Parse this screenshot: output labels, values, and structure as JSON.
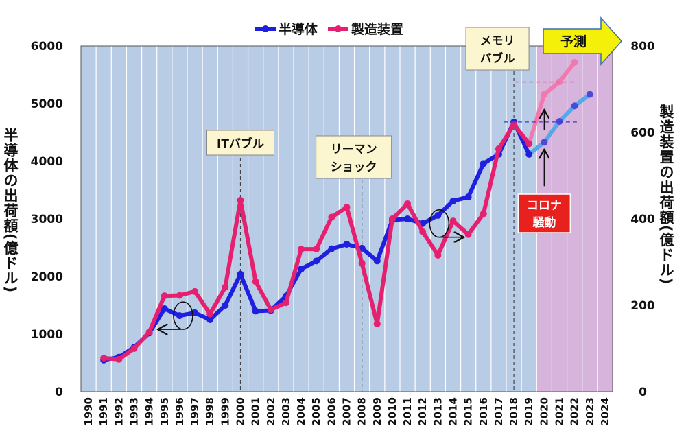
{
  "chart_data": {
    "type": "line",
    "title": "",
    "x": [
      "1990",
      "1991",
      "1992",
      "1993",
      "1994",
      "1995",
      "1996",
      "1997",
      "1998",
      "1999",
      "2000",
      "2001",
      "2002",
      "2003",
      "2004",
      "2005",
      "2006",
      "2007",
      "2008",
      "2009",
      "2010",
      "2011",
      "2012",
      "2013",
      "2014",
      "2015",
      "2016",
      "2017",
      "2018",
      "2019",
      "2020",
      "2021",
      "2022",
      "2023",
      "2024"
    ],
    "xlabel": "",
    "ylabel": "半導体の出荷額(億ドル)",
    "ylabel_right": "製造装置の出荷額(億ドル)",
    "ylim": [
      0,
      6000
    ],
    "ylim_right": [
      0,
      800
    ],
    "yticks": [
      "0",
      "1000",
      "2000",
      "3000",
      "4000",
      "5000",
      "6000"
    ],
    "yticks_right": [
      "0",
      "200",
      "400",
      "600",
      "800"
    ],
    "grid": true,
    "legend_position": "top-center",
    "series": [
      {
        "name": "半導体",
        "axis": "left",
        "color": "#1f1fe0",
        "forecast_color": "#56a8e8",
        "x": [
          1991,
          1992,
          1993,
          1994,
          1995,
          1996,
          1997,
          1998,
          1999,
          2000,
          2001,
          2002,
          2003,
          2004,
          2005,
          2006,
          2007,
          2008,
          2009,
          2010,
          2011,
          2012,
          2013,
          2014,
          2015,
          2016,
          2017,
          2018,
          2019
        ],
        "values": [
          550,
          600,
          770,
          1020,
          1440,
          1320,
          1370,
          1250,
          1500,
          2040,
          1400,
          1410,
          1660,
          2130,
          2270,
          2480,
          2560,
          2490,
          2270,
          2980,
          3000,
          2920,
          3060,
          3310,
          3380,
          3960,
          4120,
          4680,
          4120
        ],
        "forecast_x": [
          2019,
          2020,
          2021,
          2022,
          2023
        ],
        "forecast_values": [
          4120,
          4330,
          4690,
          4960,
          5160
        ]
      },
      {
        "name": "製造装置",
        "axis": "right",
        "color": "#e5206e",
        "forecast_color": "#f07ab0",
        "x": [
          1991,
          1992,
          1993,
          1994,
          1995,
          1996,
          1997,
          1998,
          1999,
          2000,
          2001,
          2002,
          2003,
          2004,
          2005,
          2006,
          2007,
          2008,
          2009,
          2010,
          2011,
          2012,
          2013,
          2014,
          2015,
          2016,
          2017,
          2018,
          2019
        ],
        "values": [
          78,
          75,
          100,
          138,
          222,
          223,
          232,
          180,
          242,
          443,
          255,
          190,
          206,
          330,
          330,
          404,
          427,
          297,
          157,
          400,
          435,
          370,
          316,
          395,
          364,
          412,
          562,
          618,
          574
        ],
        "forecast_x": [
          2019,
          2020,
          2021,
          2022
        ],
        "forecast_values": [
          574,
          688,
          717,
          762
        ]
      }
    ],
    "annotations": {
      "it_bubble": {
        "label": "ITバブル",
        "x": 2000
      },
      "lehman_line1": "リーマン",
      "lehman_line2": "ショック",
      "lehman_x": 2008,
      "memory_line1": "メモリ",
      "memory_line2": "バブル",
      "memory_x": 2018,
      "corona_line1": "コロナ",
      "corona_line2": "騒動",
      "forecast": "予測",
      "forecast_start": 2020
    },
    "colors": {
      "plot_bg": "#b9cce6",
      "forecast_bg": "#d6b4dc",
      "grid": "#ffffff",
      "callout_bg": "#fbf6cf",
      "corona_bg": "#e8201e",
      "forecast_arrow": "#f5f00a"
    }
  }
}
